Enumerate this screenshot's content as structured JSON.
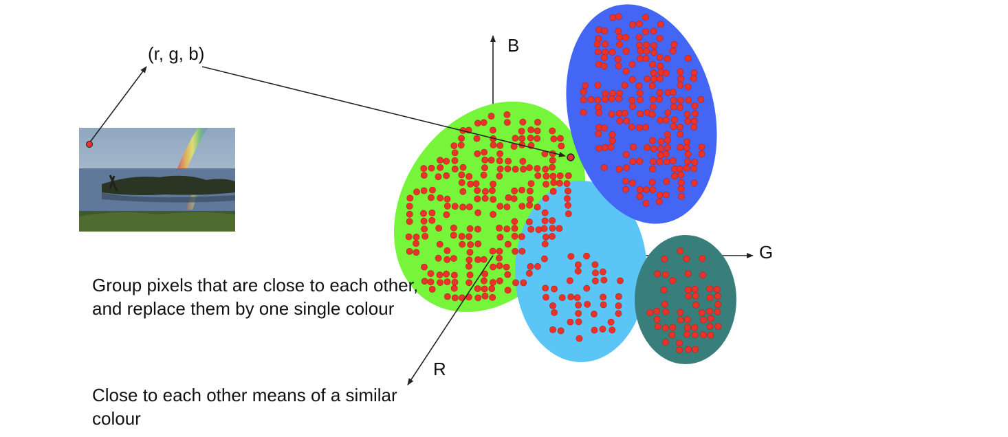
{
  "pixel_label": "(r, g, b)",
  "axes": {
    "b": "B",
    "g": "G",
    "r": "R"
  },
  "captions": [
    "Group pixels that are close to each other, and replace them by one single colour",
    "Close to each other means of a similar colour"
  ],
  "colors": {
    "cluster_green": "#76f53a",
    "cluster_blue": "#4366f4",
    "cluster_light_blue": "#5bc6f5",
    "cluster_teal": "#387e7b",
    "point": "#e8332a",
    "point_stroke": "#b81f17",
    "line": "#222222"
  },
  "photo": {
    "icon": "rainbow-lake-photo",
    "sky": "#9fb3c9",
    "water": "#5d7590",
    "grass": "#3f5a2a"
  }
}
